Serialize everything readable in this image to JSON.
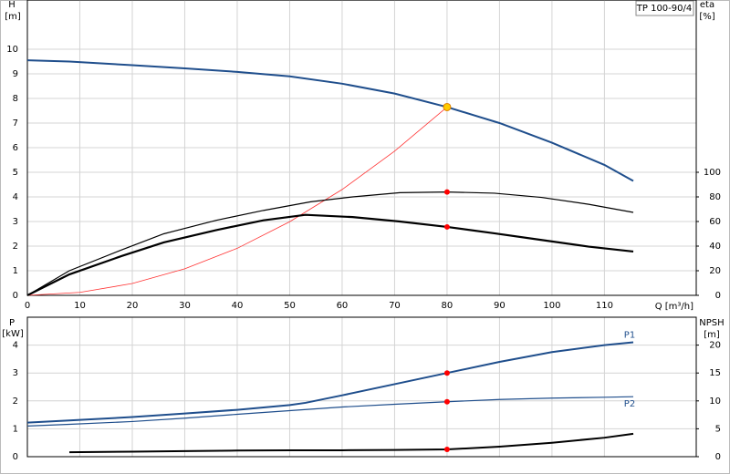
{
  "chart_data": [
    {
      "type": "line",
      "title": "TP 100-90/4",
      "y_label": "H",
      "y_unit": "[m]",
      "y2_label": "eta",
      "y2_unit": "[%]",
      "x_label": "Q [m³/h]",
      "xlim": [
        0,
        127.5
      ],
      "xticks": [
        0,
        10,
        20,
        30,
        40,
        50,
        60,
        70,
        80,
        90,
        100,
        110
      ],
      "ylim": [
        0,
        12
      ],
      "yticks": [
        0,
        1,
        2,
        3,
        4,
        5,
        6,
        7,
        8,
        9,
        10
      ],
      "y2lim": [
        0,
        240
      ],
      "y2ticks": [
        0,
        20,
        40,
        60,
        80,
        100
      ],
      "grid": true,
      "series": [
        {
          "color": "#1f4e8c",
          "linewidth": 2,
          "x": [
            0,
            8,
            20,
            30,
            40,
            50,
            60,
            70,
            80,
            90,
            100,
            110,
            115.5
          ],
          "values": [
            9.55,
            9.5,
            9.35,
            9.22,
            9.08,
            8.9,
            8.6,
            8.2,
            7.65,
            7.0,
            6.2,
            5.3,
            4.65
          ]
        },
        {
          "color": "#ff3333",
          "linewidth": 0.8,
          "x": [
            0,
            10,
            20,
            30,
            40,
            50,
            60,
            70,
            80
          ],
          "values": [
            0,
            0.12,
            0.48,
            1.08,
            1.91,
            2.99,
            4.3,
            5.86,
            7.65
          ]
        },
        {
          "color": "#000000",
          "linewidth": 1.2,
          "axis": "y2",
          "x": [
            0,
            8,
            18,
            26,
            36,
            45,
            54,
            62,
            71,
            80,
            89,
            98,
            107,
            115.5
          ],
          "values": [
            0,
            20,
            37,
            50,
            61,
            69,
            76,
            80,
            83.4,
            84,
            83,
            79.6,
            74,
            67.4
          ]
        },
        {
          "color": "#000000",
          "linewidth": 2.2,
          "axis": "y2",
          "x": [
            0,
            8,
            18,
            26,
            36,
            45,
            53,
            62,
            71,
            80,
            89,
            98,
            107,
            115.5
          ],
          "values": [
            0,
            17,
            32,
            43,
            53,
            61,
            65.4,
            63.6,
            60,
            55.6,
            50.4,
            45,
            39.6,
            35.6
          ]
        }
      ],
      "markers": [
        {
          "x": 80,
          "y": 7.65,
          "color": "#ffcc00"
        },
        {
          "x": 80,
          "y": 84,
          "color": "#ff0000",
          "axis": "y2"
        },
        {
          "x": 80,
          "y": 55.6,
          "color": "#ff0000",
          "axis": "y2"
        }
      ]
    },
    {
      "type": "line",
      "y_label": "P",
      "y_unit": "[kW]",
      "y2_label": "NPSH",
      "y2_unit": "[m]",
      "xlim": [
        0,
        127.5
      ],
      "ylim": [
        0,
        5
      ],
      "yticks": [
        0,
        1,
        2,
        3,
        4
      ],
      "y2lim": [
        0,
        25
      ],
      "y2ticks": [
        0,
        5,
        10,
        15,
        20
      ],
      "grid": true,
      "series": [
        {
          "name": "P1",
          "color": "#1f4e8c",
          "linewidth": 2,
          "x": [
            0,
            8,
            20,
            30,
            40,
            50,
            53,
            60,
            70,
            80,
            90,
            100,
            110,
            115.5
          ],
          "values": [
            1.22,
            1.3,
            1.42,
            1.55,
            1.68,
            1.85,
            1.93,
            2.2,
            2.6,
            3.0,
            3.4,
            3.75,
            4.0,
            4.1
          ]
        },
        {
          "name": "P2",
          "color": "#1f4e8c",
          "linewidth": 1.2,
          "x": [
            0,
            8,
            20,
            30,
            40,
            50,
            60,
            70,
            80,
            90,
            100,
            110,
            115.5
          ],
          "values": [
            1.1,
            1.16,
            1.26,
            1.38,
            1.52,
            1.65,
            1.78,
            1.88,
            1.97,
            2.05,
            2.1,
            2.13,
            2.15
          ]
        },
        {
          "color": "#000000",
          "linewidth": 2,
          "axis": "y2",
          "x": [
            8,
            20,
            30,
            40,
            50,
            60,
            70,
            80,
            90,
            100,
            110,
            115.5
          ],
          "values": [
            0.8,
            0.9,
            1.0,
            1.1,
            1.15,
            1.15,
            1.2,
            1.3,
            1.8,
            2.5,
            3.4,
            4.1
          ]
        }
      ],
      "markers": [
        {
          "x": 80,
          "y": 3.0,
          "color": "#ff0000"
        },
        {
          "x": 80,
          "y": 1.97,
          "color": "#ff0000"
        },
        {
          "x": 80,
          "y": 1.3,
          "color": "#ff0000",
          "axis": "y2"
        }
      ]
    }
  ]
}
